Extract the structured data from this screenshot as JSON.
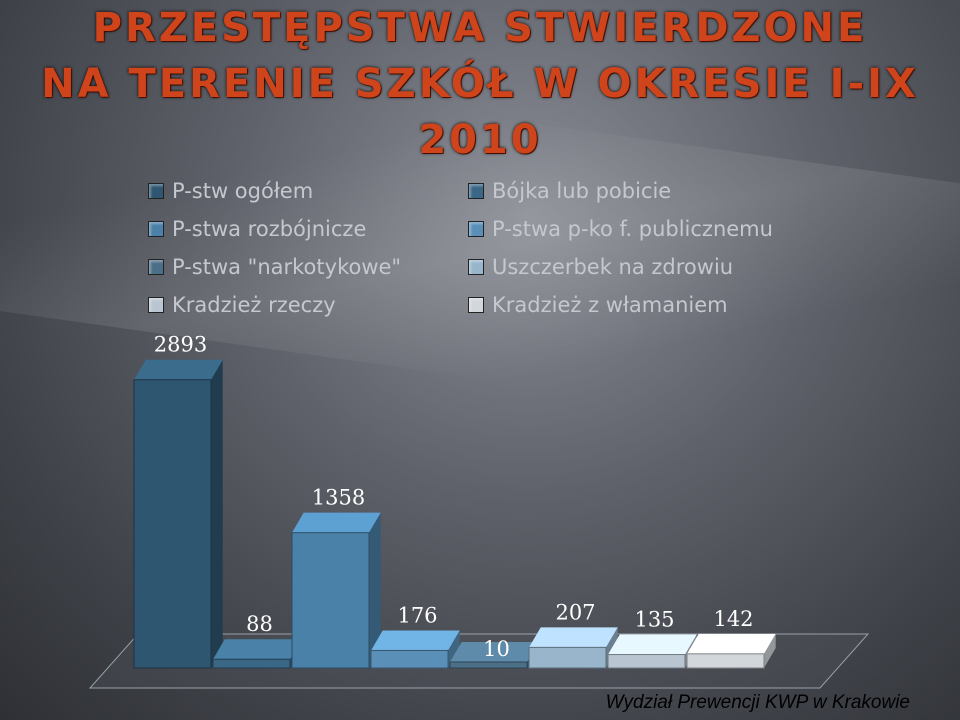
{
  "title_lines": [
    "PRZESTĘPSTWA STWIERDZONE",
    "NA TERENIE SZKÓŁ W OKRESIE  I-IX",
    "2010"
  ],
  "footer": "Wydział Prewencji KWP w Krakowie",
  "chart_data": {
    "type": "bar",
    "title": "PRZESTĘPSTWA STWIERDZONE NA TERENIE SZKÓŁ W OKRESIE  I-IX 2010",
    "legend_position": "top",
    "grid": false,
    "ylim": [
      0,
      3000
    ],
    "series": [
      {
        "name": "P-stw ogółem",
        "value": 2893,
        "label": "2893",
        "color": "#2f5670"
      },
      {
        "name": "Bójka lub pobicie",
        "value": 88,
        "label": "88",
        "color": "#3a6786"
      },
      {
        "name": "P-stwa rozbójnicze",
        "value": 1358,
        "label": "1358",
        "color": "#4a81a8"
      },
      {
        "name": "P-stwa p-ko f. publicznemu",
        "value": 176,
        "label": "176",
        "color": "#5a90b8"
      },
      {
        "name": "P-stwa \"narkotykowe\"",
        "value": 10,
        "label": "10",
        "color": "#4c6f88"
      },
      {
        "name": "Uszczerbek na zdrowiu",
        "value": 207,
        "label": "207",
        "color": "#98b5cc"
      },
      {
        "name": "Kradzież rzeczy",
        "value": 135,
        "label": "135",
        "color": "#b9c6d1"
      },
      {
        "name": "Kradzież z włamaniem",
        "value": 142,
        "label": "142",
        "color": "#d2d7dc"
      }
    ]
  }
}
